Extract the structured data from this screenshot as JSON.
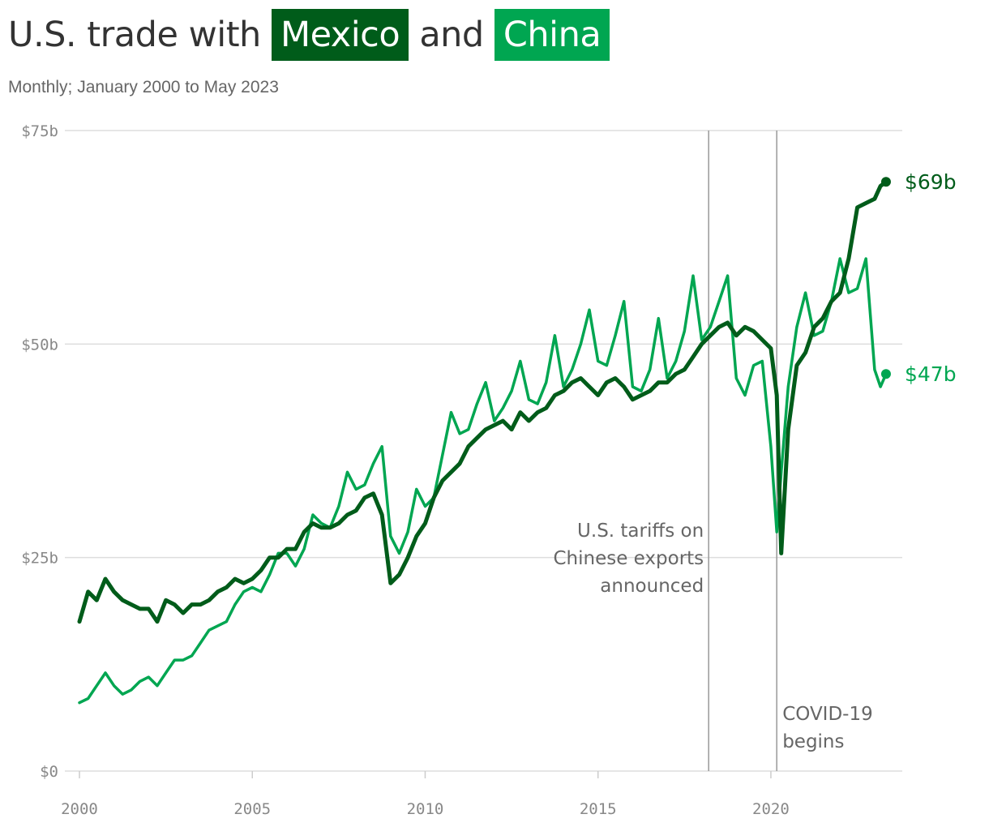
{
  "title": {
    "prefix": "U.S. trade with",
    "mexico": "Mexico",
    "connector": "and",
    "china": "China"
  },
  "subtitle": "Monthly; January 2000 to May 2023",
  "chart_data": {
    "type": "line",
    "title": "U.S. trade with Mexico and China",
    "subtitle": "Monthly; January 2000 to May 2023",
    "xlabel": "",
    "ylabel": "",
    "xlim": [
      2000.0,
      2023.8
    ],
    "ylim": [
      0,
      75
    ],
    "grid": true,
    "legend": "title-highlight",
    "y_ticks": [
      {
        "value": 0,
        "label": "$0"
      },
      {
        "value": 25,
        "label": "$25b"
      },
      {
        "value": 50,
        "label": "$50b"
      },
      {
        "value": 75,
        "label": "$75b"
      }
    ],
    "x_ticks": [
      {
        "value": 2000,
        "label": "2000"
      },
      {
        "value": 2005,
        "label": "2005"
      },
      {
        "value": 2010,
        "label": "2010"
      },
      {
        "value": 2015,
        "label": "2015"
      },
      {
        "value": 2020,
        "label": "2020"
      }
    ],
    "annotations": [
      {
        "x": 2018.2,
        "lines": [
          "U.S. tariffs on",
          "Chinese exports",
          "announced"
        ],
        "side": "left"
      },
      {
        "x": 2020.17,
        "lines": [
          "COVID-19",
          "begins"
        ],
        "side": "right"
      }
    ],
    "series": [
      {
        "name": "Mexico",
        "color": "#005c1a",
        "end_label": "$69b",
        "points": [
          [
            2000.0,
            17.5
          ],
          [
            2000.25,
            21.0
          ],
          [
            2000.5,
            20.0
          ],
          [
            2000.75,
            22.5
          ],
          [
            2001.0,
            21.0
          ],
          [
            2001.25,
            20.0
          ],
          [
            2001.5,
            19.5
          ],
          [
            2001.75,
            19.0
          ],
          [
            2002.0,
            19.0
          ],
          [
            2002.25,
            17.5
          ],
          [
            2002.5,
            20.0
          ],
          [
            2002.75,
            19.5
          ],
          [
            2003.0,
            18.5
          ],
          [
            2003.25,
            19.5
          ],
          [
            2003.5,
            19.5
          ],
          [
            2003.75,
            20.0
          ],
          [
            2004.0,
            21.0
          ],
          [
            2004.25,
            21.5
          ],
          [
            2004.5,
            22.5
          ],
          [
            2004.75,
            22.0
          ],
          [
            2005.0,
            22.5
          ],
          [
            2005.25,
            23.5
          ],
          [
            2005.5,
            25.0
          ],
          [
            2005.75,
            25.0
          ],
          [
            2006.0,
            26.0
          ],
          [
            2006.25,
            26.0
          ],
          [
            2006.5,
            28.0
          ],
          [
            2006.75,
            29.0
          ],
          [
            2007.0,
            28.5
          ],
          [
            2007.25,
            28.5
          ],
          [
            2007.5,
            29.0
          ],
          [
            2007.75,
            30.0
          ],
          [
            2008.0,
            30.5
          ],
          [
            2008.25,
            32.0
          ],
          [
            2008.5,
            32.5
          ],
          [
            2008.75,
            30.0
          ],
          [
            2009.0,
            22.0
          ],
          [
            2009.25,
            23.0
          ],
          [
            2009.5,
            25.0
          ],
          [
            2009.75,
            27.5
          ],
          [
            2010.0,
            29.0
          ],
          [
            2010.25,
            32.0
          ],
          [
            2010.5,
            34.0
          ],
          [
            2010.75,
            35.0
          ],
          [
            2011.0,
            36.0
          ],
          [
            2011.25,
            38.0
          ],
          [
            2011.5,
            39.0
          ],
          [
            2011.75,
            40.0
          ],
          [
            2012.0,
            40.5
          ],
          [
            2012.25,
            41.0
          ],
          [
            2012.5,
            40.0
          ],
          [
            2012.75,
            42.0
          ],
          [
            2013.0,
            41.0
          ],
          [
            2013.25,
            42.0
          ],
          [
            2013.5,
            42.5
          ],
          [
            2013.75,
            44.0
          ],
          [
            2014.0,
            44.5
          ],
          [
            2014.25,
            45.5
          ],
          [
            2014.5,
            46.0
          ],
          [
            2014.75,
            45.0
          ],
          [
            2015.0,
            44.0
          ],
          [
            2015.25,
            45.5
          ],
          [
            2015.5,
            46.0
          ],
          [
            2015.75,
            45.0
          ],
          [
            2016.0,
            43.5
          ],
          [
            2016.25,
            44.0
          ],
          [
            2016.5,
            44.5
          ],
          [
            2016.75,
            45.5
          ],
          [
            2017.0,
            45.5
          ],
          [
            2017.25,
            46.5
          ],
          [
            2017.5,
            47.0
          ],
          [
            2017.75,
            48.5
          ],
          [
            2018.0,
            50.0
          ],
          [
            2018.25,
            51.0
          ],
          [
            2018.5,
            52.0
          ],
          [
            2018.75,
            52.5
          ],
          [
            2019.0,
            51.0
          ],
          [
            2019.25,
            52.0
          ],
          [
            2019.5,
            51.5
          ],
          [
            2019.75,
            50.5
          ],
          [
            2020.0,
            49.5
          ],
          [
            2020.17,
            44.0
          ],
          [
            2020.3,
            25.5
          ],
          [
            2020.5,
            40.0
          ],
          [
            2020.75,
            47.5
          ],
          [
            2021.0,
            49.0
          ],
          [
            2021.25,
            52.0
          ],
          [
            2021.5,
            53.0
          ],
          [
            2021.75,
            55.0
          ],
          [
            2022.0,
            56.0
          ],
          [
            2022.25,
            60.0
          ],
          [
            2022.5,
            66.0
          ],
          [
            2022.75,
            66.5
          ],
          [
            2023.0,
            67.0
          ],
          [
            2023.17,
            68.5
          ],
          [
            2023.33,
            69.0
          ]
        ]
      },
      {
        "name": "China",
        "color": "#00a651",
        "end_label": "$47b",
        "points": [
          [
            2000.0,
            8.0
          ],
          [
            2000.25,
            8.5
          ],
          [
            2000.5,
            10.0
          ],
          [
            2000.75,
            11.5
          ],
          [
            2001.0,
            10.0
          ],
          [
            2001.25,
            9.0
          ],
          [
            2001.5,
            9.5
          ],
          [
            2001.75,
            10.5
          ],
          [
            2002.0,
            11.0
          ],
          [
            2002.25,
            10.0
          ],
          [
            2002.5,
            11.5
          ],
          [
            2002.75,
            13.0
          ],
          [
            2003.0,
            13.0
          ],
          [
            2003.25,
            13.5
          ],
          [
            2003.5,
            15.0
          ],
          [
            2003.75,
            16.5
          ],
          [
            2004.0,
            17.0
          ],
          [
            2004.25,
            17.5
          ],
          [
            2004.5,
            19.5
          ],
          [
            2004.75,
            21.0
          ],
          [
            2005.0,
            21.5
          ],
          [
            2005.25,
            21.0
          ],
          [
            2005.5,
            23.0
          ],
          [
            2005.75,
            25.5
          ],
          [
            2006.0,
            25.5
          ],
          [
            2006.25,
            24.0
          ],
          [
            2006.5,
            26.0
          ],
          [
            2006.75,
            30.0
          ],
          [
            2007.0,
            29.0
          ],
          [
            2007.25,
            28.5
          ],
          [
            2007.5,
            31.0
          ],
          [
            2007.75,
            35.0
          ],
          [
            2008.0,
            33.0
          ],
          [
            2008.25,
            33.5
          ],
          [
            2008.5,
            36.0
          ],
          [
            2008.75,
            38.0
          ],
          [
            2009.0,
            27.5
          ],
          [
            2009.25,
            25.5
          ],
          [
            2009.5,
            28.0
          ],
          [
            2009.75,
            33.0
          ],
          [
            2010.0,
            31.0
          ],
          [
            2010.25,
            32.0
          ],
          [
            2010.5,
            37.0
          ],
          [
            2010.75,
            42.0
          ],
          [
            2011.0,
            39.5
          ],
          [
            2011.25,
            40.0
          ],
          [
            2011.5,
            43.0
          ],
          [
            2011.75,
            45.5
          ],
          [
            2012.0,
            41.0
          ],
          [
            2012.25,
            42.5
          ],
          [
            2012.5,
            44.5
          ],
          [
            2012.75,
            48.0
          ],
          [
            2013.0,
            43.5
          ],
          [
            2013.25,
            43.0
          ],
          [
            2013.5,
            45.5
          ],
          [
            2013.75,
            51.0
          ],
          [
            2014.0,
            45.0
          ],
          [
            2014.25,
            47.0
          ],
          [
            2014.5,
            50.0
          ],
          [
            2014.75,
            54.0
          ],
          [
            2015.0,
            48.0
          ],
          [
            2015.25,
            47.5
          ],
          [
            2015.5,
            51.0
          ],
          [
            2015.75,
            55.0
          ],
          [
            2016.0,
            45.0
          ],
          [
            2016.25,
            44.5
          ],
          [
            2016.5,
            47.0
          ],
          [
            2016.75,
            53.0
          ],
          [
            2017.0,
            46.0
          ],
          [
            2017.25,
            48.0
          ],
          [
            2017.5,
            51.5
          ],
          [
            2017.75,
            58.0
          ],
          [
            2018.0,
            50.5
          ],
          [
            2018.25,
            52.0
          ],
          [
            2018.5,
            55.0
          ],
          [
            2018.75,
            58.0
          ],
          [
            2019.0,
            46.0
          ],
          [
            2019.25,
            44.0
          ],
          [
            2019.5,
            47.5
          ],
          [
            2019.75,
            48.0
          ],
          [
            2020.0,
            38.0
          ],
          [
            2020.17,
            28.0
          ],
          [
            2020.3,
            35.0
          ],
          [
            2020.5,
            45.0
          ],
          [
            2020.75,
            52.0
          ],
          [
            2021.0,
            56.0
          ],
          [
            2021.25,
            51.0
          ],
          [
            2021.5,
            51.5
          ],
          [
            2021.75,
            55.0
          ],
          [
            2022.0,
            60.0
          ],
          [
            2022.25,
            56.0
          ],
          [
            2022.5,
            56.5
          ],
          [
            2022.75,
            60.0
          ],
          [
            2023.0,
            47.0
          ],
          [
            2023.17,
            45.0
          ],
          [
            2023.33,
            46.5
          ]
        ]
      }
    ]
  }
}
